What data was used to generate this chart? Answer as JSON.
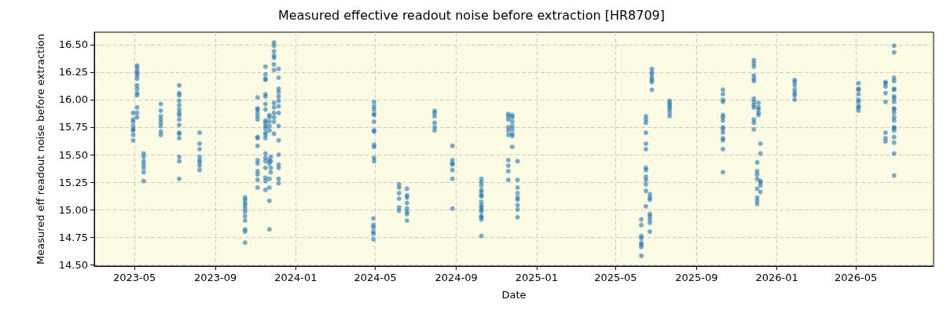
{
  "chart_data": {
    "type": "scatter",
    "title": "Measured effective readout noise before extraction [HR8709]",
    "xlabel": "Date",
    "ylabel": "Measured eff readout noise before extraction",
    "xlim": [
      "2023-03-01",
      "2026-08-27"
    ],
    "xticks": [
      "2023-05",
      "2023-09",
      "2024-01",
      "2024-05",
      "2024-09",
      "2025-01",
      "2025-05",
      "2025-09",
      "2026-01",
      "2026-05"
    ],
    "ylim": [
      14.486,
      16.614
    ],
    "yticks": [
      {
        "value": 14.5,
        "label": "14.50"
      },
      {
        "value": 14.75,
        "label": "14.75"
      },
      {
        "value": 15,
        "label": "15.00"
      },
      {
        "value": 15.25,
        "label": "15.25"
      },
      {
        "value": 15.5,
        "label": "15.50"
      },
      {
        "value": 15.75,
        "label": "15.75"
      },
      {
        "value": 16,
        "label": "16.00"
      },
      {
        "value": 16.25,
        "label": "16.25"
      },
      {
        "value": 16.5,
        "label": "16.50"
      }
    ],
    "grid": true,
    "marker": "circle",
    "series": [
      {
        "color": "#1f77b4",
        "x": [
          "2023-04-29",
          "2023-04-29",
          "2023-04-29",
          "2023-04-29",
          "2023-04-29",
          "2023-04-29",
          "2023-04-29",
          "2023-04-29",
          "2023-05-05",
          "2023-05-05",
          "2023-05-05",
          "2023-05-05",
          "2023-05-05",
          "2023-05-05",
          "2023-05-05",
          "2023-05-05",
          "2023-05-05",
          "2023-05-05",
          "2023-05-05",
          "2023-05-05",
          "2023-05-05",
          "2023-05-15",
          "2023-05-15",
          "2023-05-15",
          "2023-05-15",
          "2023-05-15",
          "2023-05-15",
          "2023-05-15",
          "2023-06-10",
          "2023-06-10",
          "2023-06-10",
          "2023-06-10",
          "2023-06-10",
          "2023-06-10",
          "2023-06-10",
          "2023-06-10",
          "2023-07-08",
          "2023-07-08",
          "2023-07-08",
          "2023-07-08",
          "2023-07-08",
          "2023-07-08",
          "2023-07-08",
          "2023-07-08",
          "2023-07-08",
          "2023-07-08",
          "2023-07-08",
          "2023-07-08",
          "2023-07-08",
          "2023-07-08",
          "2023-07-08",
          "2023-07-08",
          "2023-08-08",
          "2023-08-08",
          "2023-08-08",
          "2023-08-08",
          "2023-08-08",
          "2023-08-08",
          "2023-08-08",
          "2023-08-08",
          "2023-10-16",
          "2023-10-16",
          "2023-10-16",
          "2023-10-16",
          "2023-10-16",
          "2023-10-16",
          "2023-10-16",
          "2023-10-16",
          "2023-10-16",
          "2023-10-16",
          "2023-10-16",
          "2023-11-04",
          "2023-11-04",
          "2023-11-04",
          "2023-11-04",
          "2023-11-04",
          "2023-11-04",
          "2023-11-04",
          "2023-11-04",
          "2023-11-04",
          "2023-11-04",
          "2023-11-04",
          "2023-11-04",
          "2023-11-04",
          "2023-11-04",
          "2023-11-04",
          "2023-11-16",
          "2023-11-16",
          "2023-11-16",
          "2023-11-16",
          "2023-11-16",
          "2023-11-16",
          "2023-11-16",
          "2023-11-16",
          "2023-11-16",
          "2023-11-16",
          "2023-11-16",
          "2023-11-16",
          "2023-11-16",
          "2023-11-16",
          "2023-11-16",
          "2023-11-16",
          "2023-11-16",
          "2023-11-16",
          "2023-11-16",
          "2023-11-16",
          "2023-11-16",
          "2023-11-16",
          "2023-11-22",
          "2023-11-22",
          "2023-11-22",
          "2023-11-22",
          "2023-11-22",
          "2023-11-22",
          "2023-11-22",
          "2023-11-22",
          "2023-11-22",
          "2023-11-22",
          "2023-11-22",
          "2023-11-24",
          "2023-11-24",
          "2023-11-24",
          "2023-11-24",
          "2023-11-29",
          "2023-11-29",
          "2023-11-29",
          "2023-11-29",
          "2023-11-29",
          "2023-11-29",
          "2023-11-29",
          "2023-11-29",
          "2023-11-29",
          "2023-11-29",
          "2023-11-29",
          "2023-11-29",
          "2023-11-29",
          "2023-12-06",
          "2023-12-06",
          "2023-12-06",
          "2023-12-06",
          "2023-12-06",
          "2023-12-06",
          "2023-12-06",
          "2023-12-06",
          "2023-12-06",
          "2023-12-06",
          "2023-12-06",
          "2023-12-06",
          "2023-12-06",
          "2023-12-06",
          "2023-12-06",
          "2024-04-29",
          "2024-04-29",
          "2024-04-29",
          "2024-04-29",
          "2024-04-29",
          "2024-04-29",
          "2024-04-29",
          "2024-04-29",
          "2024-04-29",
          "2024-04-29",
          "2024-04-29",
          "2024-04-29",
          "2024-04-28",
          "2024-04-28",
          "2024-04-28",
          "2024-04-28",
          "2024-04-28",
          "2024-04-28",
          "2024-06-06",
          "2024-06-06",
          "2024-06-06",
          "2024-06-06",
          "2024-06-06",
          "2024-06-06",
          "2024-06-18",
          "2024-06-18",
          "2024-06-18",
          "2024-06-18",
          "2024-06-18",
          "2024-06-18",
          "2024-06-18",
          "2024-06-18",
          "2024-07-30",
          "2024-07-30",
          "2024-07-30",
          "2024-07-30",
          "2024-07-30",
          "2024-07-30",
          "2024-08-26",
          "2024-08-26",
          "2024-08-26",
          "2024-08-26",
          "2024-08-26",
          "2024-08-26",
          "2024-08-26",
          "2024-10-09",
          "2024-10-09",
          "2024-10-09",
          "2024-10-09",
          "2024-10-09",
          "2024-10-09",
          "2024-10-09",
          "2024-10-09",
          "2024-10-09",
          "2024-10-09",
          "2024-10-09",
          "2024-10-09",
          "2024-10-09",
          "2024-10-09",
          "2024-10-09",
          "2024-10-09",
          "2024-11-19",
          "2024-11-19",
          "2024-11-19",
          "2024-11-19",
          "2024-11-19",
          "2024-11-19",
          "2024-11-19",
          "2024-11-19",
          "2024-11-19",
          "2024-11-19",
          "2024-11-25",
          "2024-11-25",
          "2024-11-25",
          "2024-11-25",
          "2024-11-25",
          "2024-11-25",
          "2024-11-25",
          "2024-11-25",
          "2024-12-03",
          "2024-12-03",
          "2024-12-03",
          "2024-12-03",
          "2024-12-03",
          "2024-12-03",
          "2024-12-03",
          "2024-12-03",
          "2024-12-03",
          "2025-06-09",
          "2025-06-09",
          "2025-06-09",
          "2025-06-09",
          "2025-06-09",
          "2025-06-09",
          "2025-06-09",
          "2025-06-09",
          "2025-06-16",
          "2025-06-16",
          "2025-06-16",
          "2025-06-16",
          "2025-06-16",
          "2025-06-16",
          "2025-06-16",
          "2025-06-16",
          "2025-06-16",
          "2025-06-16",
          "2025-06-16",
          "2025-06-16",
          "2025-06-16",
          "2025-06-22",
          "2025-06-22",
          "2025-06-22",
          "2025-06-22",
          "2025-06-22",
          "2025-06-22",
          "2025-06-22",
          "2025-06-22",
          "2025-06-25",
          "2025-06-25",
          "2025-06-25",
          "2025-06-25",
          "2025-06-25",
          "2025-06-25",
          "2025-06-25",
          "2025-07-22",
          "2025-07-22",
          "2025-07-22",
          "2025-07-22",
          "2025-07-22",
          "2025-07-22",
          "2025-07-22",
          "2025-10-11",
          "2025-10-11",
          "2025-10-11",
          "2025-10-11",
          "2025-10-11",
          "2025-10-11",
          "2025-10-11",
          "2025-10-11",
          "2025-10-11",
          "2025-10-11",
          "2025-10-11",
          "2025-10-11",
          "2025-10-11",
          "2025-10-11",
          "2025-11-27",
          "2025-11-27",
          "2025-11-27",
          "2025-11-27",
          "2025-11-27",
          "2025-11-27",
          "2025-11-27",
          "2025-11-27",
          "2025-11-27",
          "2025-11-27",
          "2025-11-27",
          "2025-11-27",
          "2025-11-27",
          "2025-12-04",
          "2025-12-04",
          "2025-12-04",
          "2025-12-04",
          "2025-12-04",
          "2025-12-02",
          "2025-12-02",
          "2025-12-02",
          "2025-12-02",
          "2025-12-02",
          "2025-12-02",
          "2025-12-02",
          "2025-12-02",
          "2025-12-07",
          "2025-12-07",
          "2025-12-07",
          "2025-12-07",
          "2025-12-07",
          "2025-12-07",
          "2026-01-28",
          "2026-01-28",
          "2026-01-28",
          "2026-01-28",
          "2026-01-28",
          "2026-01-28",
          "2026-01-28",
          "2026-05-05",
          "2026-05-05",
          "2026-05-05",
          "2026-05-05",
          "2026-05-05",
          "2026-05-05",
          "2026-05-05",
          "2026-05-05",
          "2026-05-05",
          "2026-06-15",
          "2026-06-15",
          "2026-06-15",
          "2026-06-15",
          "2026-06-15",
          "2026-06-15",
          "2026-06-15",
          "2026-06-15",
          "2026-06-28",
          "2026-06-28",
          "2026-06-28",
          "2026-06-28",
          "2026-06-28",
          "2026-06-28",
          "2026-06-28",
          "2026-06-28",
          "2026-06-28",
          "2026-06-28",
          "2026-06-28",
          "2026-06-28",
          "2026-06-28",
          "2026-06-28",
          "2026-06-28",
          "2026-06-28",
          "2026-06-28",
          "2026-06-28",
          "2026-06-28",
          "2026-06-28",
          "2026-06-28"
        ],
        "values": [
          15.88,
          15.82,
          15.8,
          15.76,
          15.73,
          15.72,
          15.68,
          15.63,
          16.31,
          16.29,
          16.26,
          16.24,
          16.22,
          16.19,
          16.13,
          16.1,
          16.06,
          16.04,
          15.93,
          15.88,
          15.84,
          15.51,
          15.48,
          15.44,
          15.41,
          15.38,
          15.34,
          15.26,
          15.96,
          15.9,
          15.85,
          15.82,
          15.79,
          15.76,
          15.71,
          15.68,
          16.13,
          16.06,
          16.04,
          15.99,
          15.95,
          15.91,
          15.88,
          15.86,
          15.82,
          15.77,
          15.7,
          15.69,
          15.65,
          15.48,
          15.44,
          15.28,
          15.7,
          15.6,
          15.55,
          15.48,
          15.45,
          15.43,
          15.4,
          15.36,
          15.11,
          15.09,
          15.06,
          15.04,
          15.01,
          14.98,
          14.94,
          14.9,
          14.82,
          14.8,
          14.7,
          16.02,
          15.92,
          15.91,
          15.88,
          15.85,
          15.82,
          15.66,
          15.65,
          15.58,
          15.45,
          15.42,
          15.35,
          15.32,
          15.27,
          15.2,
          16.3,
          16.23,
          16.19,
          16.18,
          16.05,
          16.03,
          15.96,
          15.91,
          15.81,
          15.79,
          15.76,
          15.74,
          15.7,
          15.68,
          15.65,
          15.51,
          15.47,
          15.44,
          15.38,
          15.29,
          15.26,
          15.18,
          15.86,
          15.84,
          15.8,
          15.76,
          15.72,
          15.45,
          15.42,
          15.28,
          15.2,
          15.08,
          14.82,
          15.48,
          15.44,
          15.38,
          15.34,
          16.52,
          16.49,
          16.44,
          16.4,
          16.38,
          16.32,
          16.27,
          15.97,
          15.93,
          15.88,
          15.84,
          15.8,
          15.69,
          16.28,
          16.2,
          16.1,
          16.07,
          16.03,
          15.99,
          15.94,
          15.88,
          15.76,
          15.63,
          15.5,
          15.41,
          15.38,
          15.28,
          15.24,
          15.98,
          15.94,
          15.91,
          15.87,
          15.86,
          15.8,
          15.72,
          15.71,
          15.59,
          15.57,
          15.47,
          15.44,
          14.92,
          14.86,
          14.84,
          14.8,
          14.78,
          14.73,
          15.23,
          15.2,
          15.15,
          15.1,
          15.02,
          14.99,
          15.19,
          15.13,
          15.11,
          15.06,
          15.01,
          14.98,
          14.96,
          14.9,
          15.9,
          15.88,
          15.85,
          15.79,
          15.75,
          15.72,
          15.58,
          15.45,
          15.42,
          15.41,
          15.36,
          15.28,
          15.01,
          15.28,
          15.25,
          15.22,
          15.18,
          15.16,
          15.13,
          15.12,
          15.07,
          15.04,
          15.02,
          15.0,
          14.98,
          14.94,
          14.93,
          14.91,
          14.76,
          15.87,
          15.85,
          15.82,
          15.75,
          15.72,
          15.68,
          15.45,
          15.4,
          15.35,
          15.27,
          15.86,
          15.84,
          15.8,
          15.76,
          15.73,
          15.69,
          15.67,
          15.57,
          15.44,
          15.27,
          15.2,
          15.15,
          15.11,
          15.09,
          15.04,
          15.0,
          14.93,
          14.91,
          14.86,
          14.76,
          14.74,
          14.7,
          14.68,
          14.66,
          14.58,
          15.85,
          15.82,
          15.79,
          15.7,
          15.6,
          15.55,
          15.38,
          15.36,
          15.3,
          15.27,
          15.23,
          15.17,
          15.03,
          15.14,
          15.11,
          15.09,
          14.96,
          14.94,
          14.91,
          14.88,
          14.8,
          16.28,
          16.25,
          16.23,
          16.2,
          16.18,
          16.16,
          16.09,
          15.99,
          15.97,
          15.95,
          15.93,
          15.91,
          15.88,
          15.85,
          16.09,
          16.05,
          16.0,
          15.98,
          15.86,
          15.84,
          15.81,
          15.75,
          15.73,
          15.7,
          15.65,
          15.63,
          15.55,
          15.34,
          16.36,
          16.33,
          16.3,
          16.22,
          16.19,
          16.17,
          16.01,
          15.98,
          15.95,
          15.93,
          15.82,
          15.79,
          15.73,
          15.97,
          15.93,
          15.91,
          15.88,
          15.86,
          15.43,
          15.35,
          15.32,
          15.28,
          15.19,
          15.11,
          15.08,
          15.05,
          15.6,
          15.51,
          15.26,
          15.25,
          15.22,
          15.16,
          16.18,
          16.16,
          16.13,
          16.09,
          16.06,
          16.04,
          16.0,
          16.15,
          16.1,
          16.09,
          16.05,
          16.0,
          15.98,
          15.94,
          15.93,
          15.9,
          16.16,
          16.15,
          16.12,
          16.06,
          15.98,
          15.7,
          15.65,
          15.62,
          16.49,
          16.43,
          16.2,
          16.17,
          16.1,
          16.09,
          16.03,
          16.01,
          15.98,
          15.92,
          15.91,
          15.88,
          15.84,
          15.81,
          15.75,
          15.74,
          15.72,
          15.66,
          15.61,
          15.51,
          15.31
        ]
      }
    ]
  }
}
